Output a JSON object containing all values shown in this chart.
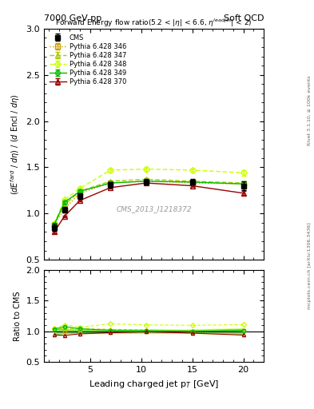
{
  "title_left": "7000 GeV pp",
  "title_right": "Soft QCD",
  "xlabel": "Leading charged jet p$_T$ [GeV]",
  "ylabel_main": "(dE$^{fard}$ / d$\\eta$) / (d Encl / d$\\eta$)",
  "ylabel_ratio": "Ratio to CMS",
  "watermark": "CMS_2013_I1218372",
  "right_label1": "mcplots.cern.ch [arXiv:1306.3436]",
  "right_label2": "Rivet 3.1.10, ≥ 100k events",
  "x_points": [
    1.5,
    2.5,
    4.0,
    7.0,
    10.5,
    15.0,
    20.0
  ],
  "cms_y": [
    0.85,
    1.04,
    1.19,
    1.31,
    1.34,
    1.34,
    1.3
  ],
  "cms_yerr": [
    0.04,
    0.03,
    0.03,
    0.03,
    0.03,
    0.03,
    0.05
  ],
  "p346_y": [
    0.88,
    1.05,
    1.22,
    1.33,
    1.35,
    1.33,
    1.32
  ],
  "p346_yerr": [
    0.01,
    0.01,
    0.01,
    0.01,
    0.01,
    0.01,
    0.02
  ],
  "p347_y": [
    0.88,
    1.09,
    1.24,
    1.35,
    1.37,
    1.35,
    1.33
  ],
  "p347_yerr": [
    0.01,
    0.01,
    0.01,
    0.01,
    0.01,
    0.01,
    0.02
  ],
  "p348_y": [
    0.89,
    1.15,
    1.27,
    1.47,
    1.48,
    1.47,
    1.44
  ],
  "p348_yerr": [
    0.01,
    0.01,
    0.02,
    0.02,
    0.02,
    0.02,
    0.03
  ],
  "p349_y": [
    0.88,
    1.12,
    1.24,
    1.33,
    1.35,
    1.34,
    1.32
  ],
  "p349_yerr": [
    0.01,
    0.01,
    0.01,
    0.01,
    0.01,
    0.01,
    0.02
  ],
  "p370_y": [
    0.8,
    0.97,
    1.14,
    1.28,
    1.33,
    1.3,
    1.22
  ],
  "p370_yerr": [
    0.01,
    0.01,
    0.01,
    0.01,
    0.01,
    0.01,
    0.02
  ],
  "color_346": "#c8a000",
  "color_347": "#aacc00",
  "color_348": "#ccff00",
  "color_349": "#00bb00",
  "color_370": "#990000",
  "color_cms": "#000000",
  "ylim_main": [
    0.5,
    3.0
  ],
  "ylim_ratio": [
    0.5,
    2.0
  ],
  "xlim": [
    0.5,
    22.0
  ],
  "cms_band_color_inner": "#00cc00",
  "cms_band_color_outer": "#ccff00",
  "cms_band_alpha": 0.5
}
